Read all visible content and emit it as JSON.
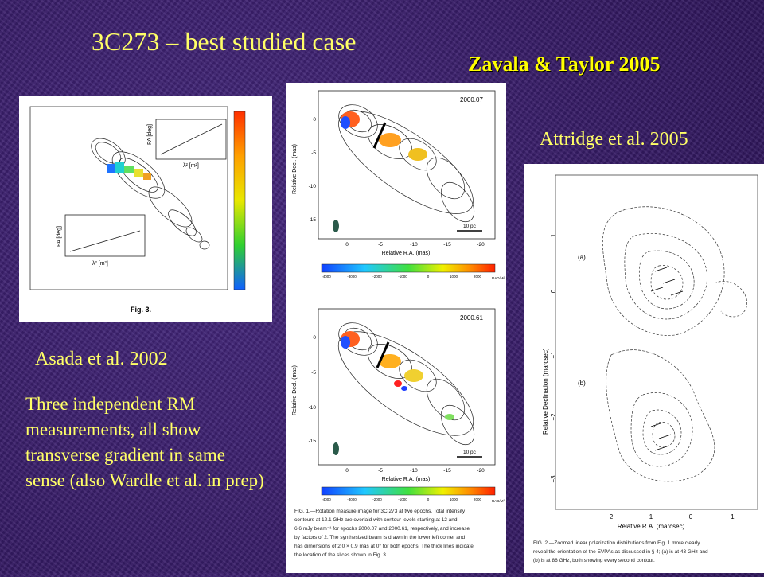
{
  "slide": {
    "title": "3C273 – best studied case",
    "citations": {
      "zavala": "Zavala & Taylor 2005",
      "attridge": "Attridge et al. 2005",
      "asada": "Asada et al. 2002"
    },
    "summary": "Three independent RM measurements, all show transverse gradient in same sense (also Wardle et al. in prep)"
  },
  "figures": {
    "asada": {
      "fig_label": "Fig. 3.",
      "inset_top": {
        "ylabel": "PA [deg]",
        "xlabel": "λ² [m²]"
      },
      "inset_bottom": {
        "ylabel": "PA [deg]",
        "xlabel": "λ² [m²]"
      }
    },
    "zavala": {
      "epoch_top": "2000.07",
      "epoch_bottom": "2000.61",
      "ylabel": "Relative Decl. (mas)",
      "xlabel": "Relative R.A. (mas)",
      "scale_bar": "10 pc",
      "colorbar_unit": "RAD/M²",
      "colorbar_ticks": [
        "-4000",
        "-3000",
        "-2000",
        "-1000",
        "0",
        "1000",
        "2000"
      ],
      "x_ticks": [
        "0",
        "-5",
        "-10",
        "-15",
        "-20"
      ],
      "y_ticks_top": [
        "0",
        "-5",
        "-10",
        "-15"
      ],
      "y_ticks_bottom": [
        "0",
        "-5",
        "-10",
        "-15"
      ],
      "caption": [
        "FIG. 1.—Rotation measure image for 3C 273 at two epochs. Total intensity",
        "contours at 12.1 GHz are overlaid with contour levels starting at 12 and",
        "6.6 mJy beam⁻¹ for epochs 2000.07 and 2000.61, respectively, and increase",
        "by factors of 2. The synthesized beam is drawn in the lower left corner and",
        "has dimensions of 2.0 × 0.9 mas at 0° for both epochs. The thick lines indicate",
        "the location of the slices shown in Fig. 3."
      ]
    },
    "attridge": {
      "ylabel": "Relative Declination (marcsec)",
      "xlabel": "Relative R.A. (marcsec)",
      "panel_a": "(a)",
      "panel_b": "(b)",
      "y_ticks": [
        "1",
        "0",
        "−1",
        "−2",
        "−3"
      ],
      "x_ticks": [
        "2",
        "1",
        "0",
        "−1"
      ],
      "caption": [
        "FIG. 2.—Zoomed linear polarization distributions from Fig. 1 more clearly",
        "reveal the orientation of the EVPAs as discussed in § 4; (a) is at 43 GHz and",
        "(b) is at 86 GHz, both showing every second contour."
      ]
    }
  }
}
